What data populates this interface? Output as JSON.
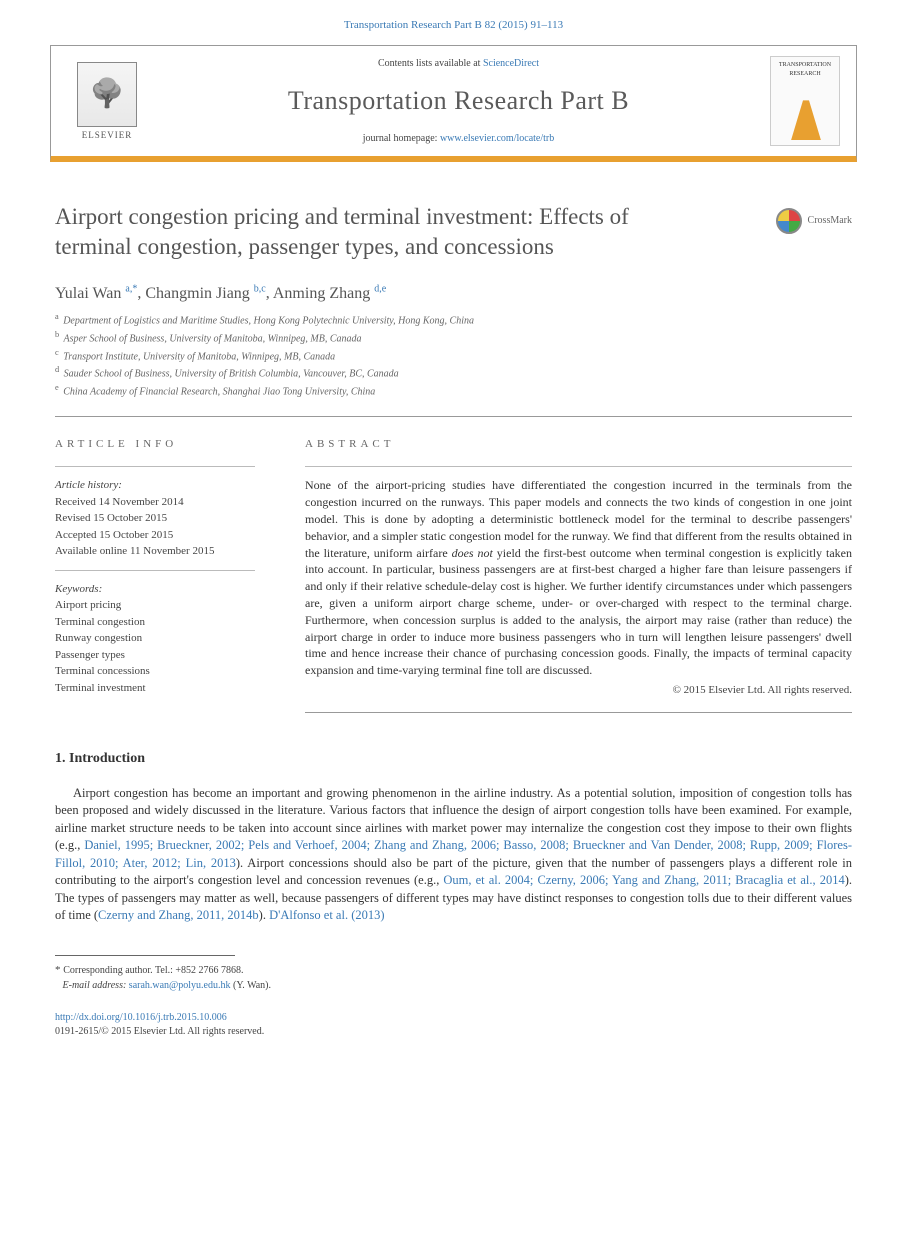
{
  "citation": "Transportation Research Part B 82 (2015) 91–113",
  "header": {
    "contents_prefix": "Contents lists available at ",
    "contents_link": "ScienceDirect",
    "journal": "Transportation Research Part B",
    "homepage_prefix": "journal homepage: ",
    "homepage_link": "www.elsevier.com/locate/trb",
    "publisher": "ELSEVIER",
    "cover_text": "TRANSPORTATION RESEARCH",
    "accent_color": "#e8a030"
  },
  "crossmark_label": "CrossMark",
  "title": "Airport congestion pricing and terminal investment: Effects of terminal congestion, passenger types, and concessions",
  "authors_html": "Yulai Wan|a,*|, Changmin Jiang|b,c|, Anming Zhang|d,e|",
  "authors": [
    {
      "name": "Yulai Wan",
      "sup": "a,",
      "mark": "*"
    },
    {
      "name": "Changmin Jiang",
      "sup": "b,c"
    },
    {
      "name": "Anming Zhang",
      "sup": "d,e"
    }
  ],
  "affiliations": [
    {
      "sup": "a",
      "text": "Department of Logistics and Maritime Studies, Hong Kong Polytechnic University, Hong Kong, China"
    },
    {
      "sup": "b",
      "text": "Asper School of Business, University of Manitoba, Winnipeg, MB, Canada"
    },
    {
      "sup": "c",
      "text": "Transport Institute, University of Manitoba, Winnipeg, MB, Canada"
    },
    {
      "sup": "d",
      "text": "Sauder School of Business, University of British Columbia, Vancouver, BC, Canada"
    },
    {
      "sup": "e",
      "text": "China Academy of Financial Research, Shanghai Jiao Tong University, China"
    }
  ],
  "article_info": {
    "head": "article info",
    "history_label": "Article history:",
    "history": [
      "Received 14 November 2014",
      "Revised 15 October 2015",
      "Accepted 15 October 2015",
      "Available online 11 November 2015"
    ],
    "keywords_label": "Keywords:",
    "keywords": [
      "Airport pricing",
      "Terminal congestion",
      "Runway congestion",
      "Passenger types",
      "Terminal concessions",
      "Terminal investment"
    ]
  },
  "abstract": {
    "head": "abstract",
    "text": "None of the airport-pricing studies have differentiated the congestion incurred in the terminals from the congestion incurred on the runways. This paper models and connects the two kinds of congestion in one joint model. This is done by adopting a deterministic bottleneck model for the terminal to describe passengers' behavior, and a simpler static congestion model for the runway. We find that different from the results obtained in the literature, uniform airfare does not yield the first-best outcome when terminal congestion is explicitly taken into account. In particular, business passengers are at first-best charged a higher fare than leisure passengers if and only if their relative schedule-delay cost is higher. We further identify circumstances under which passengers are, given a uniform airport charge scheme, under- or over-charged with respect to the terminal charge. Furthermore, when concession surplus is added to the analysis, the airport may raise (rather than reduce) the airport charge in order to induce more business passengers who in turn will lengthen leisure passengers' dwell time and hence increase their chance of purchasing concession goods. Finally, the impacts of terminal capacity expansion and time-varying terminal fine toll are discussed.",
    "copyright": "© 2015 Elsevier Ltd. All rights reserved."
  },
  "intro": {
    "number": "1.",
    "title": "Introduction",
    "para": "Airport congestion has become an important and growing phenomenon in the airline industry. As a potential solution, imposition of congestion tolls has been proposed and widely discussed in the literature. Various factors that influence the design of airport congestion tolls have been examined. For example, airline market structure needs to be taken into account since airlines with market power may internalize the congestion cost they impose to their own flights (e.g., ",
    "cite1": "Daniel, 1995; Brueckner, 2002; Pels and Verhoef, 2004; Zhang and Zhang, 2006; Basso, 2008; Brueckner and Van Dender, 2008; Rupp, 2009; Flores-Fillol, 2010; Ater, 2012; Lin, 2013",
    "mid1": "). Airport concessions should also be part of the picture, given that the number of passengers plays a different role in contributing to the airport's congestion level and concession revenues (e.g., ",
    "cite2": "Oum, et al. 2004; Czerny, 2006; Yang and Zhang, 2011; Bracaglia et al., 2014",
    "mid2": "). The types of passengers may matter as well, because passengers of different types may have distinct responses to congestion tolls due to their different values of time (",
    "cite3": "Czerny and Zhang, 2011, 2014b",
    "mid3": "). ",
    "cite4": "D'Alfonso et al. (2013)"
  },
  "footnotes": {
    "corr_author": "Corresponding author. Tel.: +852 2766 7868.",
    "email_label": "E-mail address:",
    "email": "sarah.wan@polyu.edu.hk",
    "email_who": "(Y. Wan)."
  },
  "doi": {
    "link": "http://dx.doi.org/10.1016/j.trb.2015.10.006",
    "issn_cr": "0191-2615/© 2015 Elsevier Ltd. All rights reserved."
  },
  "colors": {
    "link": "#3a7ab5",
    "text": "#333333",
    "heading": "#555555",
    "accent": "#e8a030"
  }
}
